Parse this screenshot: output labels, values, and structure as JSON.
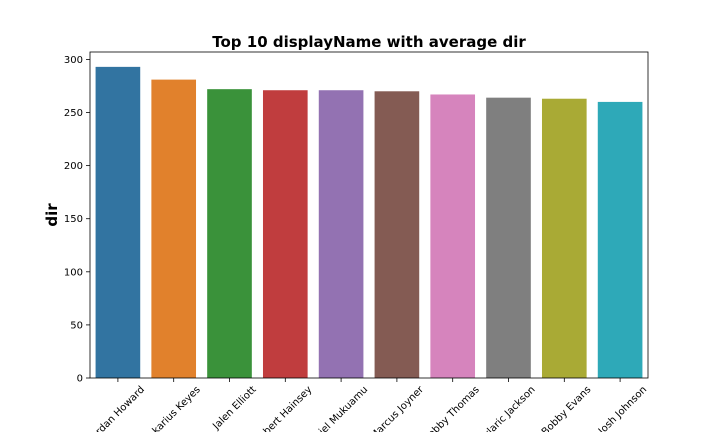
{
  "chart_data": {
    "type": "bar",
    "title": "Top 10 displayName with average dir",
    "xlabel": "",
    "ylabel": "dir",
    "ylim": [
      0,
      307
    ],
    "yticks": [
      0,
      50,
      100,
      150,
      200,
      250,
      300
    ],
    "grid": false,
    "categories": [
      "Jordan Howard",
      "Jakarius Keyes",
      "Jalen Elliott",
      "Robert Hainsey",
      "Daniel Mukuamu",
      "Marcus Joyner",
      "Bobby Thomas",
      "Jaylaric Jackson",
      "Bobby Evans",
      "Josh Johnson"
    ],
    "values": [
      293,
      281,
      272,
      271,
      271,
      270,
      267,
      264,
      263,
      260
    ],
    "colors": [
      "#3274a1",
      "#e1812c",
      "#3a923a",
      "#c03d3e",
      "#9372b2",
      "#845b53",
      "#d684bd",
      "#7f7f7f",
      "#a9aa35",
      "#2ea9b8"
    ]
  }
}
